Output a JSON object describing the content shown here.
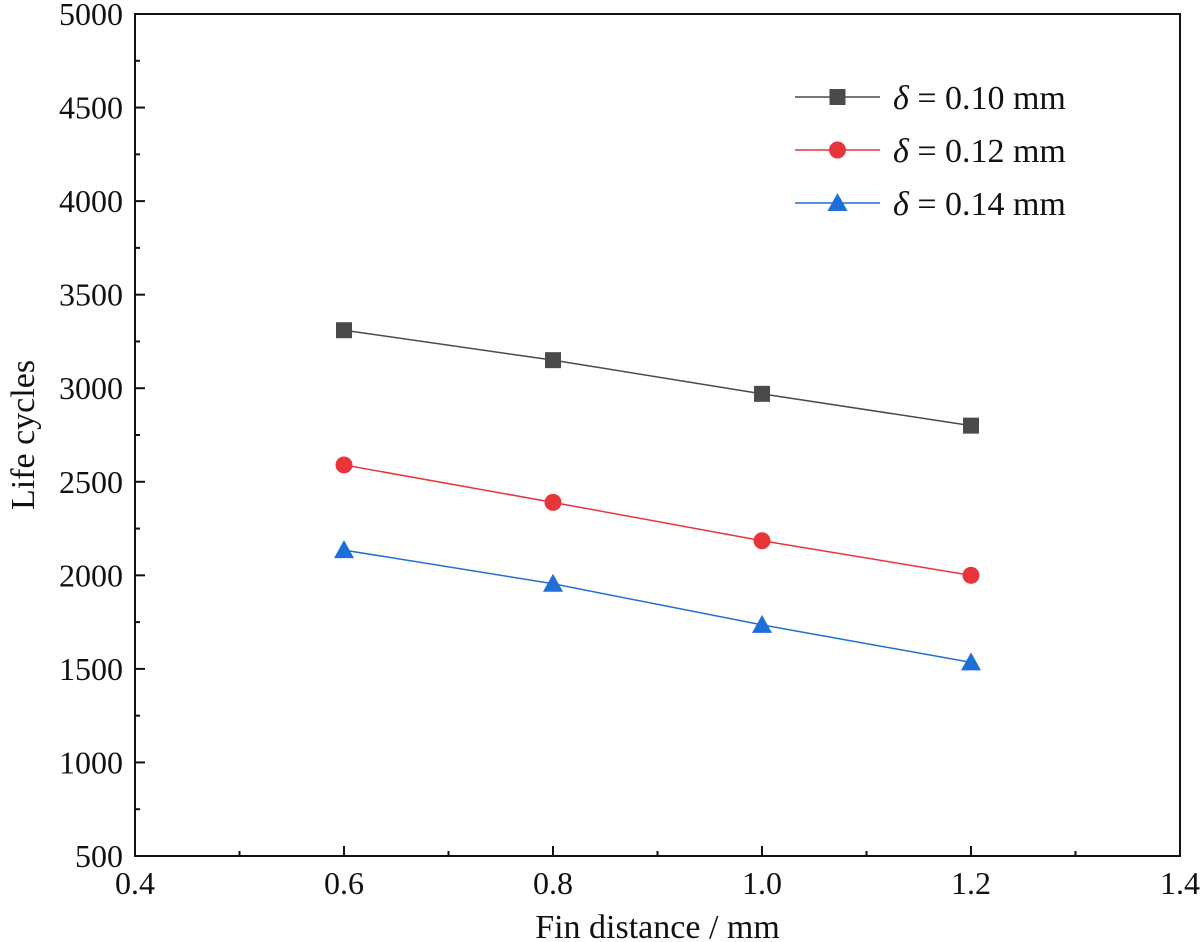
{
  "chart_data": {
    "type": "line",
    "title": "",
    "xlabel": "Fin distance / mm",
    "ylabel": "Life cycles",
    "xlim": [
      0.4,
      1.4
    ],
    "ylim": [
      500,
      5000
    ],
    "x_ticks": [
      0.4,
      0.6,
      0.8,
      1.0,
      1.2,
      1.4
    ],
    "x_tick_labels": [
      "0.4",
      "0.6",
      "0.8",
      "1.0",
      "1.2",
      "1.4"
    ],
    "y_ticks": [
      500,
      1000,
      1500,
      2000,
      2500,
      3000,
      3500,
      4000,
      4500,
      5000
    ],
    "y_tick_labels": [
      "500",
      "1000",
      "1500",
      "2000",
      "2500",
      "3000",
      "3500",
      "4000",
      "4500",
      "5000"
    ],
    "grid": false,
    "legend_position": "top-right",
    "x": [
      0.6,
      0.8,
      1.0,
      1.2
    ],
    "series": [
      {
        "name": "δ = 0.10 mm",
        "legend_symbol": "δ",
        "legend_rest": " = 0.10 mm",
        "marker": "square",
        "color": "#4a4a4a",
        "values": [
          3310,
          3150,
          2970,
          2800
        ]
      },
      {
        "name": "δ = 0.12 mm",
        "legend_symbol": "δ",
        "legend_rest": " = 0.12 mm",
        "marker": "circle",
        "color": "#e8353a",
        "values": [
          2590,
          2390,
          2185,
          2000
        ]
      },
      {
        "name": "δ = 0.14 mm",
        "legend_symbol": "δ",
        "legend_rest": " = 0.14 mm",
        "marker": "triangle",
        "color": "#1f6fd8",
        "values": [
          2135,
          1955,
          1735,
          1535
        ]
      }
    ]
  }
}
